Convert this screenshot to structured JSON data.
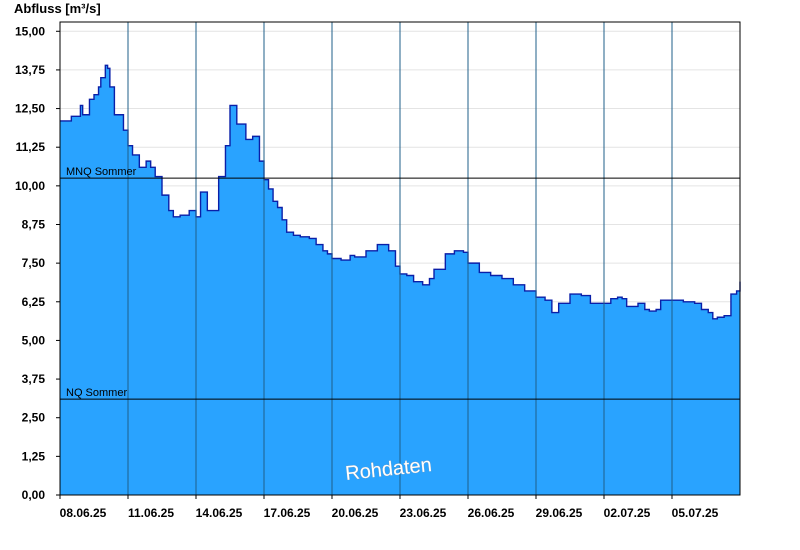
{
  "chart_data": {
    "type": "area",
    "ylabel": "Abfluss [m³/s]",
    "ylim": [
      0,
      15.3
    ],
    "yticks": [
      "0,00",
      "1,25",
      "2,50",
      "3,75",
      "5,00",
      "6,25",
      "7,50",
      "8,75",
      "10,00",
      "11,25",
      "12,50",
      "13,75",
      "15,00"
    ],
    "ytick_values": [
      0,
      1.25,
      2.5,
      3.75,
      5.0,
      6.25,
      7.5,
      8.75,
      10.0,
      11.25,
      12.5,
      13.75,
      15.0
    ],
    "xlim": [
      0,
      30.0
    ],
    "xtick_labels": [
      "08.06.25",
      "11.06.25",
      "14.06.25",
      "17.06.25",
      "20.06.25",
      "23.06.25",
      "26.06.25",
      "29.06.25",
      "02.07.25",
      "05.07.25"
    ],
    "xtick_days": [
      0,
      3,
      6,
      9,
      12,
      15,
      18,
      21,
      24,
      27
    ],
    "grid": true,
    "fill_color": "#29a3ff",
    "line_color": "#0a1fa8",
    "reference_lines": [
      {
        "label": "MNQ Sommer",
        "value": 10.25
      },
      {
        "label": "NQ Sommer",
        "value": 3.1
      }
    ],
    "watermark": "Rohdaten",
    "series": [
      {
        "x": [
          0,
          0.5,
          0.9,
          1.0,
          1.3,
          1.5,
          1.7,
          1.8,
          2.0,
          2.1,
          2.2,
          2.4,
          2.6,
          2.8,
          3.0,
          3.2,
          3.5,
          3.8,
          4.0,
          4.2,
          4.5,
          4.8,
          5.0,
          5.3,
          5.7,
          6.0,
          6.2,
          6.5,
          7.0,
          7.3,
          7.5,
          7.8,
          8.2,
          8.5,
          8.8,
          9.0,
          9.2,
          9.4,
          9.6,
          9.8,
          10.0,
          10.3,
          10.6,
          11.0,
          11.3,
          11.6,
          11.8,
          12.0,
          12.4,
          12.8,
          13.0,
          13.5,
          14.0,
          14.5,
          14.8,
          15.0,
          15.3,
          15.6,
          16.0,
          16.3,
          16.5,
          17.0,
          17.4,
          17.8,
          18.0,
          18.5,
          19.0,
          19.5,
          20.0,
          20.5,
          21.0,
          21.4,
          21.7,
          22.0,
          22.5,
          23.0,
          23.4,
          24.0,
          24.3,
          24.6,
          24.8,
          25.0,
          25.5,
          25.8,
          26.0,
          26.3,
          26.5,
          27.0,
          27.5,
          28.0,
          28.3,
          28.6,
          28.8,
          29.0,
          29.3,
          29.6,
          29.85,
          30.0
        ],
        "y": [
          12.1,
          12.25,
          12.6,
          12.3,
          12.8,
          12.95,
          13.2,
          13.5,
          13.9,
          13.8,
          13.2,
          12.3,
          12.3,
          11.8,
          11.3,
          11.0,
          10.6,
          10.8,
          10.6,
          10.3,
          9.7,
          9.2,
          9.0,
          9.05,
          9.2,
          9.0,
          9.8,
          9.2,
          10.3,
          11.3,
          12.6,
          12.0,
          11.5,
          11.6,
          10.8,
          10.2,
          9.9,
          9.5,
          9.3,
          8.9,
          8.5,
          8.4,
          8.35,
          8.3,
          8.1,
          7.9,
          7.8,
          7.65,
          7.6,
          7.75,
          7.7,
          7.9,
          8.1,
          7.9,
          7.4,
          7.15,
          7.1,
          6.9,
          6.8,
          7.0,
          7.3,
          7.8,
          7.9,
          7.85,
          7.5,
          7.2,
          7.1,
          7.0,
          6.8,
          6.6,
          6.4,
          6.3,
          5.9,
          6.2,
          6.5,
          6.45,
          6.2,
          6.2,
          6.35,
          6.4,
          6.35,
          6.1,
          6.2,
          6.0,
          5.95,
          6.0,
          6.3,
          6.3,
          6.25,
          6.2,
          6.0,
          5.9,
          5.7,
          5.75,
          5.8,
          6.5,
          6.6,
          6.9
        ]
      }
    ]
  }
}
